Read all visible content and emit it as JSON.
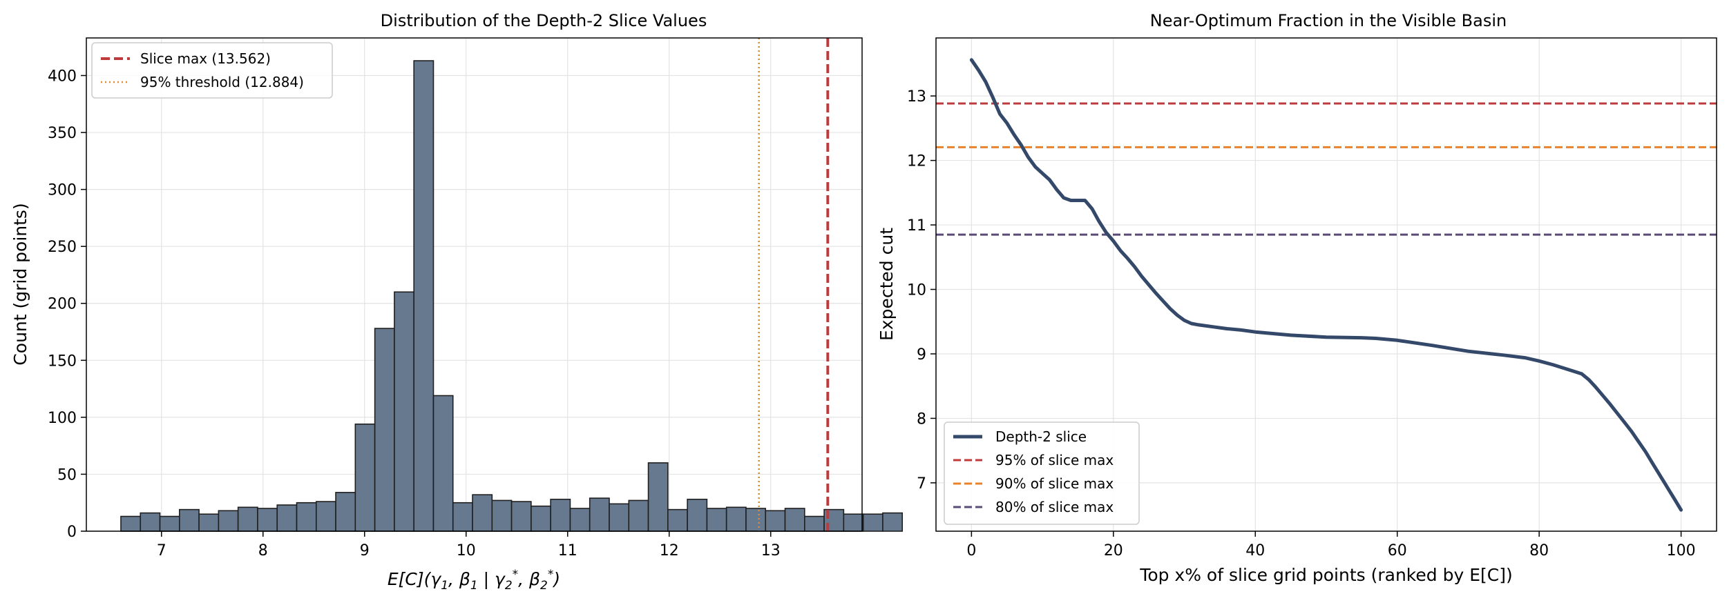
{
  "chart_data": [
    {
      "type": "bar",
      "title": "Distribution of the Depth-2 Slice Values",
      "xlabel": "E[C](γ1, β1 | γ2*, β2*)",
      "ylabel": "Count (grid points)",
      "xlim": [
        6.26,
        13.9
      ],
      "ylim": [
        0,
        433
      ],
      "xticks": [
        7,
        8,
        9,
        10,
        11,
        12,
        13
      ],
      "yticks": [
        0,
        50,
        100,
        150,
        200,
        250,
        300,
        350,
        400
      ],
      "grid": true,
      "legend_position": "top-left",
      "bin_start": 6.6,
      "bin_width": 0.1924,
      "counts": [
        13,
        16,
        13,
        19,
        15,
        18,
        21,
        20,
        23,
        25,
        26,
        34,
        94,
        178,
        210,
        413,
        119,
        25,
        32,
        27,
        26,
        22,
        28,
        20,
        29,
        24,
        27,
        60,
        19,
        28,
        20,
        21,
        20,
        18,
        20,
        13,
        19,
        15,
        15,
        16
      ],
      "bar_color": "#67798f",
      "vlines": [
        {
          "name": "Slice max (13.562)",
          "x": 13.562,
          "color": "#c0393b",
          "style": "dashed"
        },
        {
          "name": "95% threshold (12.884)",
          "x": 12.884,
          "color": "#e08a2e",
          "style": "dotted"
        }
      ]
    },
    {
      "type": "line",
      "title": "Near-Optimum Fraction in the Visible Basin",
      "xlabel": "Top x% of slice grid points (ranked by E[C])",
      "ylabel": "Expected cut",
      "xlim": [
        -5,
        105
      ],
      "ylim": [
        6.25,
        13.9
      ],
      "xticks": [
        0,
        20,
        40,
        60,
        80,
        100
      ],
      "yticks": [
        7,
        8,
        9,
        10,
        11,
        12,
        13
      ],
      "grid": true,
      "legend_position": "bottom-left",
      "series": [
        {
          "name": "Depth-2 slice",
          "color": "#34496a",
          "x": [
            0,
            1,
            2,
            3,
            4,
            5,
            6,
            7,
            8,
            9,
            10,
            11,
            12,
            13,
            14,
            15,
            16,
            17,
            18,
            19,
            20,
            21,
            22,
            23,
            24,
            25,
            26,
            27,
            28,
            29,
            30,
            31,
            32,
            34,
            36,
            38,
            40,
            45,
            50,
            55,
            57,
            60,
            65,
            70,
            75,
            78,
            80,
            82,
            84,
            86,
            87,
            88,
            89,
            90,
            91,
            92,
            93,
            94,
            95,
            96,
            97,
            98,
            99,
            100
          ],
          "y": [
            13.56,
            13.4,
            13.22,
            12.98,
            12.72,
            12.58,
            12.4,
            12.24,
            12.05,
            11.9,
            11.8,
            11.7,
            11.55,
            11.42,
            11.38,
            11.38,
            11.38,
            11.25,
            11.05,
            10.88,
            10.75,
            10.6,
            10.48,
            10.35,
            10.2,
            10.07,
            9.94,
            9.82,
            9.7,
            9.6,
            9.52,
            9.47,
            9.45,
            9.42,
            9.39,
            9.37,
            9.34,
            9.29,
            9.26,
            9.25,
            9.24,
            9.21,
            9.13,
            9.04,
            8.98,
            8.94,
            8.89,
            8.83,
            8.76,
            8.69,
            8.6,
            8.48,
            8.35,
            8.22,
            8.08,
            7.94,
            7.8,
            7.64,
            7.48,
            7.3,
            7.12,
            6.94,
            6.76,
            6.58
          ]
        }
      ],
      "hlines": [
        {
          "name": "95% of slice max",
          "y": 12.884,
          "color": "#c0393b"
        },
        {
          "name": "90% of slice max",
          "y": 12.206,
          "color": "#e8832b"
        },
        {
          "name": "80% of slice max",
          "y": 10.85,
          "color": "#5a4a78"
        }
      ]
    }
  ]
}
